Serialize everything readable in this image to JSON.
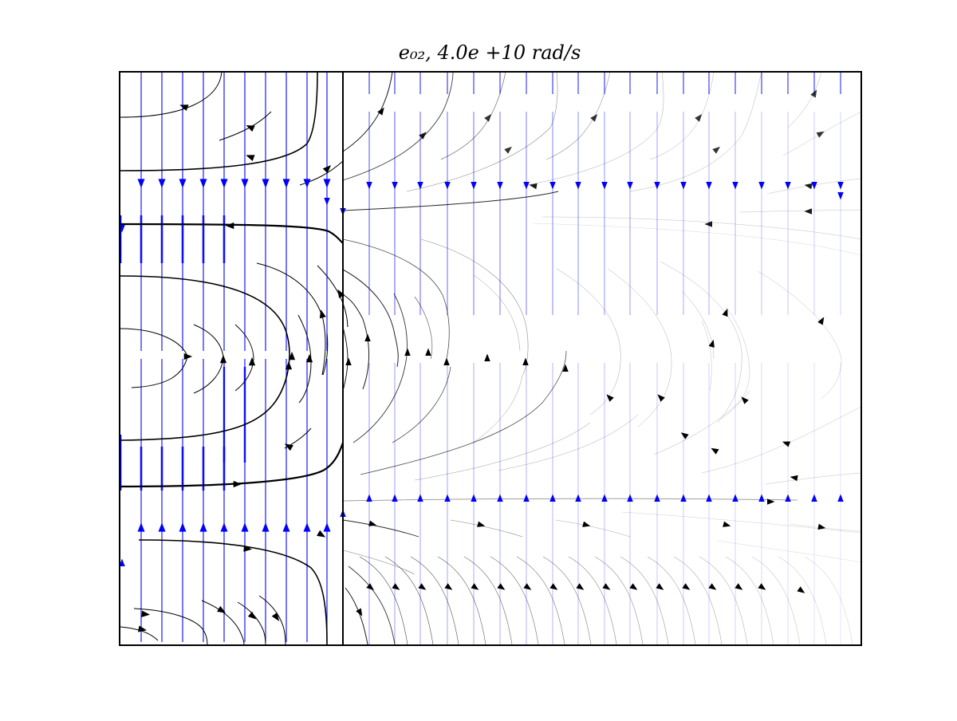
{
  "figure": {
    "title": "e₀₂, 4.0e +10 rad/s",
    "colors": {
      "stream": "#000000",
      "field_lines": "#0000ff",
      "frame": "#000000",
      "background": "#ffffff"
    }
  },
  "chart_data": {
    "type": "streamplot",
    "title": "e₀₂, 4.0e +10 rad/s",
    "xlabel": "",
    "ylabel": "",
    "grid": false,
    "legend": "none",
    "series": [
      {
        "name": "",
        "color": "#000000"
      },
      {
        "name": "",
        "color": "#0000ff"
      }
    ]
  }
}
